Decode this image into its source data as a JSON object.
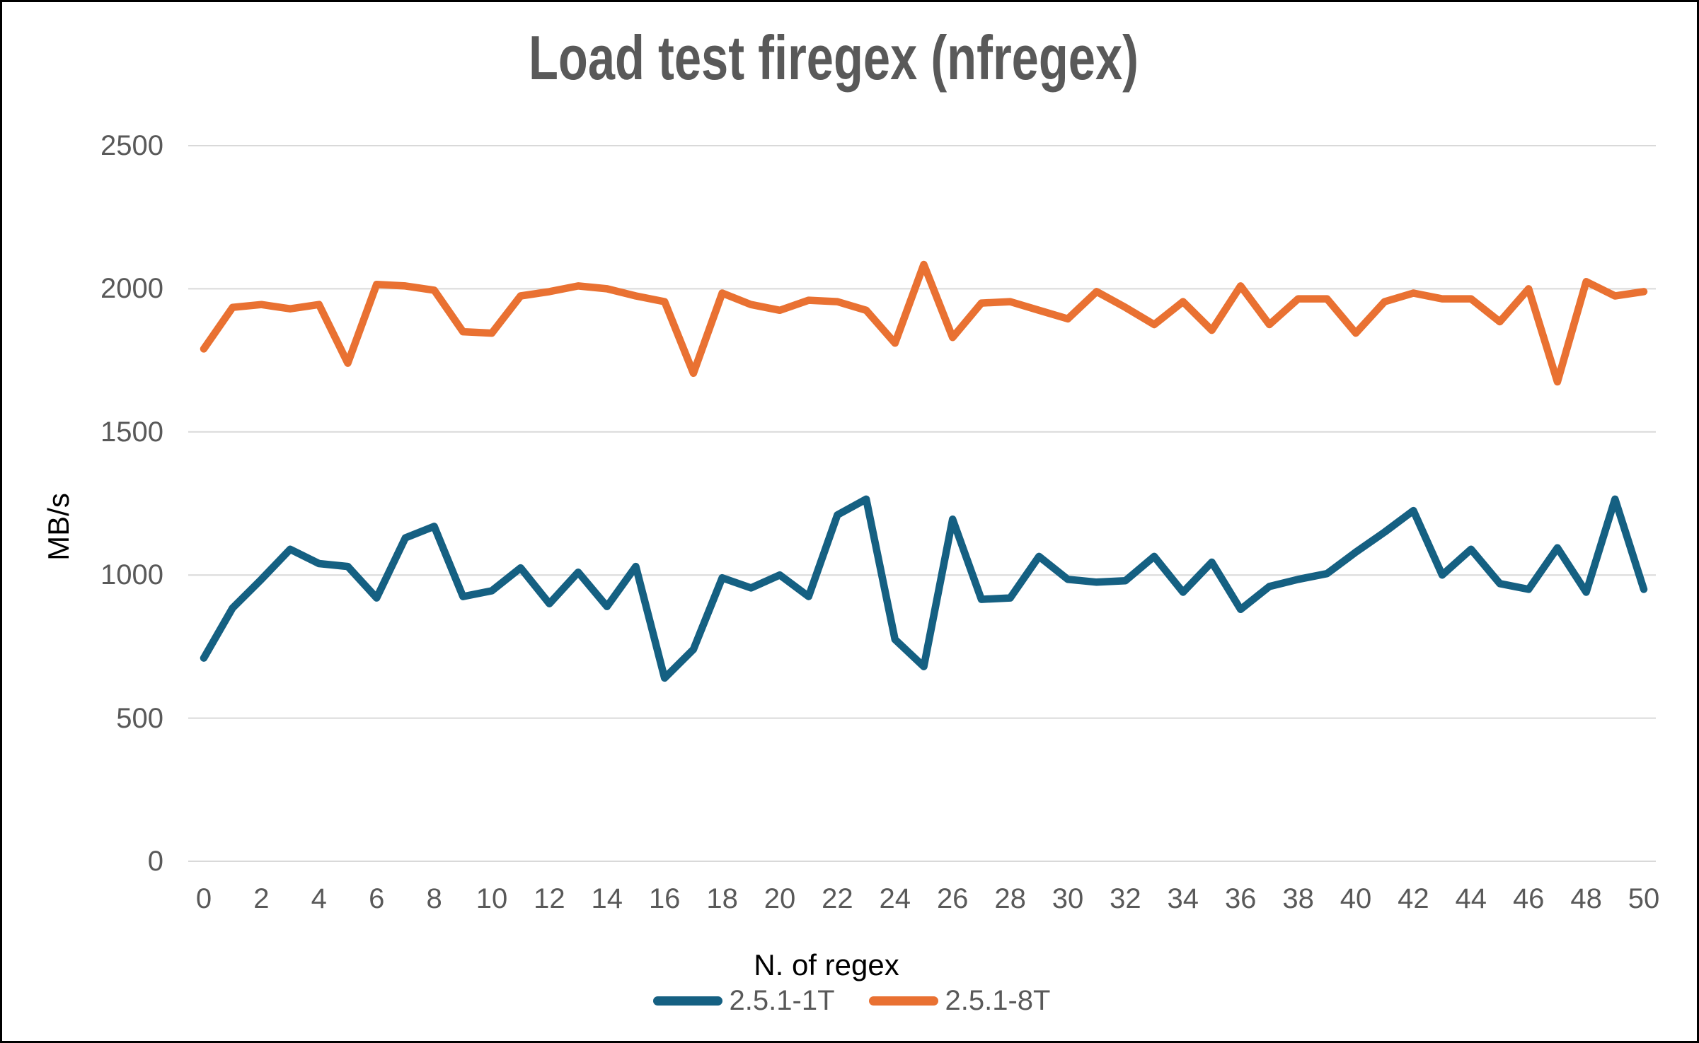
{
  "chart_data": {
    "type": "line",
    "title": "Load test firegex (nfregex)",
    "xlabel": "N. of regex",
    "ylabel": "MB/s",
    "x": [
      0,
      1,
      2,
      3,
      4,
      5,
      6,
      7,
      8,
      9,
      10,
      11,
      12,
      13,
      14,
      15,
      16,
      17,
      18,
      19,
      20,
      21,
      22,
      23,
      24,
      25,
      26,
      27,
      28,
      29,
      30,
      31,
      32,
      33,
      34,
      35,
      36,
      37,
      38,
      39,
      40,
      41,
      42,
      43,
      44,
      45,
      46,
      47,
      48,
      49,
      50
    ],
    "series": [
      {
        "name": "2.5.1-1T",
        "color": "#156082",
        "values": [
          710,
          885,
          985,
          1090,
          1040,
          1030,
          920,
          1130,
          1170,
          925,
          945,
          1025,
          900,
          1010,
          890,
          1030,
          640,
          740,
          990,
          955,
          1000,
          925,
          1210,
          1265,
          775,
          680,
          1195,
          915,
          920,
          1065,
          985,
          975,
          980,
          1065,
          940,
          1045,
          880,
          960,
          985,
          1005,
          1080,
          1150,
          1225,
          1000,
          1090,
          970,
          950,
          1095,
          940,
          1265,
          950
        ]
      },
      {
        "name": "2.5.1-8T",
        "color": "#E97132",
        "values": [
          1790,
          1935,
          1945,
          1930,
          1945,
          1740,
          2015,
          2010,
          1995,
          1850,
          1845,
          1975,
          1990,
          2010,
          2000,
          1975,
          1955,
          1705,
          1985,
          1945,
          1925,
          1960,
          1955,
          1925,
          1810,
          2085,
          1830,
          1950,
          1955,
          1925,
          1895,
          1990,
          1935,
          1875,
          1955,
          1855,
          2010,
          1875,
          1965,
          1965,
          1845,
          1955,
          1985,
          1965,
          1965,
          1885,
          2000,
          1675,
          2025,
          1975,
          1990
        ]
      }
    ],
    "ylim": [
      0,
      2500
    ],
    "yticks": [
      0,
      500,
      1000,
      1500,
      2000,
      2500
    ],
    "xticks": [
      0,
      2,
      4,
      6,
      8,
      10,
      12,
      14,
      16,
      18,
      20,
      22,
      24,
      26,
      28,
      30,
      32,
      34,
      36,
      38,
      40,
      42,
      44,
      46,
      48,
      50
    ],
    "grid": "horizontal",
    "gridline_color": "#D9D9D9",
    "legend_position": "bottom"
  }
}
